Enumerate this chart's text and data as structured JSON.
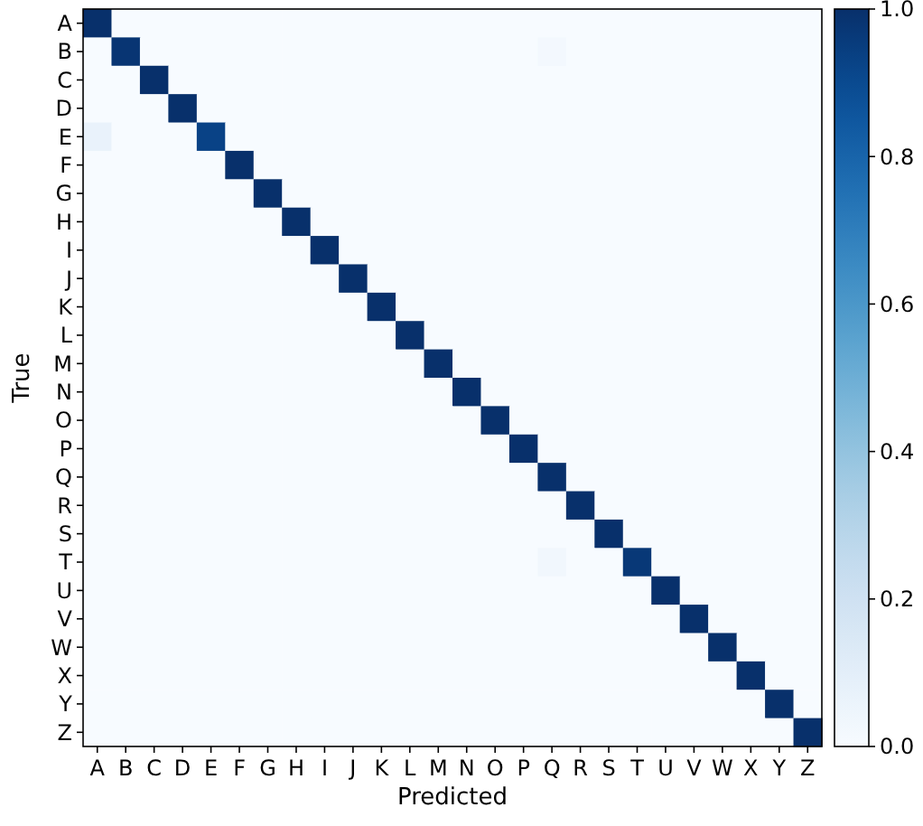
{
  "chart_data": {
    "type": "heatmap",
    "xlabel": "Predicted",
    "ylabel": "True",
    "categories": [
      "A",
      "B",
      "C",
      "D",
      "E",
      "F",
      "G",
      "H",
      "I",
      "J",
      "K",
      "L",
      "M",
      "N",
      "O",
      "P",
      "Q",
      "R",
      "S",
      "T",
      "U",
      "V",
      "W",
      "X",
      "Y",
      "Z"
    ],
    "y_categories": [
      "A",
      "B",
      "C",
      "D",
      "E",
      "F",
      "G",
      "H",
      "I",
      "J",
      "K",
      "L",
      "M",
      "N",
      "O",
      "P",
      "Q",
      "R",
      "S",
      "T",
      "U",
      "V",
      "W",
      "X",
      "Y",
      "Z"
    ],
    "cells": [
      [
        1,
        0,
        0,
        0,
        0,
        0,
        0,
        0,
        0,
        0,
        0,
        0,
        0,
        0,
        0,
        0,
        0,
        0,
        0,
        0,
        0,
        0,
        0,
        0,
        0,
        0
      ],
      [
        0,
        0.98,
        0,
        0,
        0,
        0,
        0,
        0,
        0,
        0,
        0,
        0,
        0,
        0,
        0,
        0,
        0.02,
        0,
        0,
        0,
        0,
        0,
        0,
        0,
        0,
        0
      ],
      [
        0,
        0,
        1,
        0,
        0,
        0,
        0,
        0,
        0,
        0,
        0,
        0,
        0,
        0,
        0,
        0,
        0,
        0,
        0,
        0,
        0,
        0,
        0,
        0,
        0,
        0
      ],
      [
        0,
        0,
        0,
        1,
        0,
        0,
        0,
        0,
        0,
        0,
        0,
        0,
        0,
        0,
        0,
        0,
        0,
        0,
        0,
        0,
        0,
        0,
        0,
        0,
        0,
        0
      ],
      [
        0.07,
        0,
        0,
        0,
        0.93,
        0,
        0,
        0,
        0,
        0,
        0,
        0,
        0,
        0,
        0,
        0,
        0,
        0,
        0,
        0,
        0,
        0,
        0,
        0,
        0,
        0
      ],
      [
        0,
        0,
        0,
        0,
        0,
        1,
        0,
        0,
        0,
        0,
        0,
        0,
        0,
        0,
        0,
        0,
        0,
        0,
        0,
        0,
        0,
        0,
        0,
        0,
        0,
        0
      ],
      [
        0,
        0,
        0,
        0,
        0,
        0,
        1,
        0,
        0,
        0,
        0,
        0,
        0,
        0,
        0,
        0,
        0,
        0,
        0,
        0,
        0,
        0,
        0,
        0,
        0,
        0
      ],
      [
        0,
        0,
        0,
        0,
        0,
        0,
        0,
        1,
        0,
        0,
        0,
        0,
        0,
        0,
        0,
        0,
        0,
        0,
        0,
        0,
        0,
        0,
        0,
        0,
        0,
        0
      ],
      [
        0,
        0,
        0,
        0,
        0,
        0,
        0,
        0,
        1,
        0,
        0,
        0,
        0,
        0,
        0,
        0,
        0,
        0,
        0,
        0,
        0,
        0,
        0,
        0,
        0,
        0
      ],
      [
        0,
        0,
        0,
        0,
        0,
        0,
        0,
        0,
        0,
        1,
        0,
        0,
        0,
        0,
        0,
        0,
        0,
        0,
        0,
        0,
        0,
        0,
        0,
        0,
        0,
        0
      ],
      [
        0,
        0,
        0,
        0,
        0,
        0,
        0,
        0,
        0,
        0,
        1,
        0,
        0,
        0,
        0,
        0,
        0,
        0,
        0,
        0,
        0,
        0,
        0,
        0,
        0,
        0
      ],
      [
        0,
        0,
        0,
        0,
        0,
        0,
        0,
        0,
        0,
        0,
        0,
        1,
        0,
        0,
        0,
        0,
        0,
        0,
        0,
        0,
        0,
        0,
        0,
        0,
        0,
        0
      ],
      [
        0,
        0,
        0,
        0,
        0,
        0,
        0,
        0,
        0,
        0,
        0,
        0,
        1,
        0,
        0,
        0,
        0,
        0,
        0,
        0,
        0,
        0,
        0,
        0,
        0,
        0
      ],
      [
        0,
        0,
        0,
        0,
        0,
        0,
        0,
        0,
        0,
        0,
        0,
        0,
        0,
        1,
        0,
        0,
        0,
        0,
        0,
        0,
        0,
        0,
        0,
        0,
        0,
        0
      ],
      [
        0,
        0,
        0,
        0,
        0,
        0,
        0,
        0,
        0,
        0,
        0,
        0,
        0,
        0,
        1,
        0,
        0,
        0,
        0,
        0,
        0,
        0,
        0,
        0,
        0,
        0
      ],
      [
        0,
        0,
        0,
        0,
        0,
        0,
        0,
        0,
        0,
        0,
        0,
        0,
        0,
        0,
        0,
        1,
        0,
        0,
        0,
        0,
        0,
        0,
        0,
        0,
        0,
        0
      ],
      [
        0,
        0,
        0,
        0,
        0,
        0,
        0,
        0,
        0,
        0,
        0,
        0,
        0,
        0,
        0,
        0,
        1,
        0,
        0,
        0,
        0,
        0,
        0,
        0,
        0,
        0
      ],
      [
        0,
        0,
        0,
        0,
        0,
        0,
        0,
        0,
        0,
        0,
        0,
        0,
        0,
        0,
        0,
        0,
        0,
        1,
        0,
        0,
        0,
        0,
        0,
        0,
        0,
        0
      ],
      [
        0,
        0,
        0,
        0,
        0,
        0,
        0,
        0,
        0,
        0,
        0,
        0,
        0,
        0,
        0,
        0,
        0,
        0,
        1,
        0,
        0,
        0,
        0,
        0,
        0,
        0
      ],
      [
        0,
        0,
        0,
        0,
        0,
        0,
        0,
        0,
        0,
        0,
        0,
        0,
        0,
        0,
        0,
        0,
        0.03,
        0,
        0,
        0.97,
        0,
        0,
        0,
        0,
        0,
        0
      ],
      [
        0,
        0,
        0,
        0,
        0,
        0,
        0,
        0,
        0,
        0,
        0,
        0,
        0,
        0,
        0,
        0,
        0,
        0,
        0,
        0,
        1,
        0,
        0,
        0,
        0,
        0
      ],
      [
        0,
        0,
        0,
        0,
        0,
        0,
        0,
        0,
        0,
        0,
        0,
        0,
        0,
        0,
        0,
        0,
        0,
        0,
        0,
        0,
        0,
        1,
        0,
        0,
        0,
        0
      ],
      [
        0,
        0,
        0,
        0,
        0,
        0,
        0,
        0,
        0,
        0,
        0,
        0,
        0,
        0,
        0,
        0,
        0,
        0,
        0,
        0,
        0,
        0,
        1,
        0,
        0,
        0
      ],
      [
        0,
        0,
        0,
        0,
        0,
        0,
        0,
        0,
        0,
        0,
        0,
        0,
        0,
        0,
        0,
        0,
        0,
        0,
        0,
        0,
        0,
        0,
        0,
        1,
        0,
        0
      ],
      [
        0,
        0,
        0,
        0,
        0,
        0,
        0,
        0,
        0,
        0,
        0,
        0,
        0,
        0,
        0,
        0,
        0,
        0,
        0,
        0,
        0,
        0,
        0,
        0,
        1,
        0
      ],
      [
        0,
        0,
        0,
        0,
        0,
        0,
        0,
        0,
        0,
        0,
        0,
        0,
        0,
        0,
        0,
        0,
        0,
        0,
        0,
        0,
        0,
        0,
        0,
        0,
        0,
        1
      ]
    ],
    "clim": [
      0,
      1
    ],
    "cticks": [
      {
        "value": 0,
        "label": "0.0"
      },
      {
        "value": 0.2,
        "label": "0.2"
      },
      {
        "value": 0.4,
        "label": "0.4"
      },
      {
        "value": 0.6,
        "label": "0.6"
      },
      {
        "value": 0.8,
        "label": "0.8"
      },
      {
        "value": 1,
        "label": "1.0"
      }
    ]
  }
}
